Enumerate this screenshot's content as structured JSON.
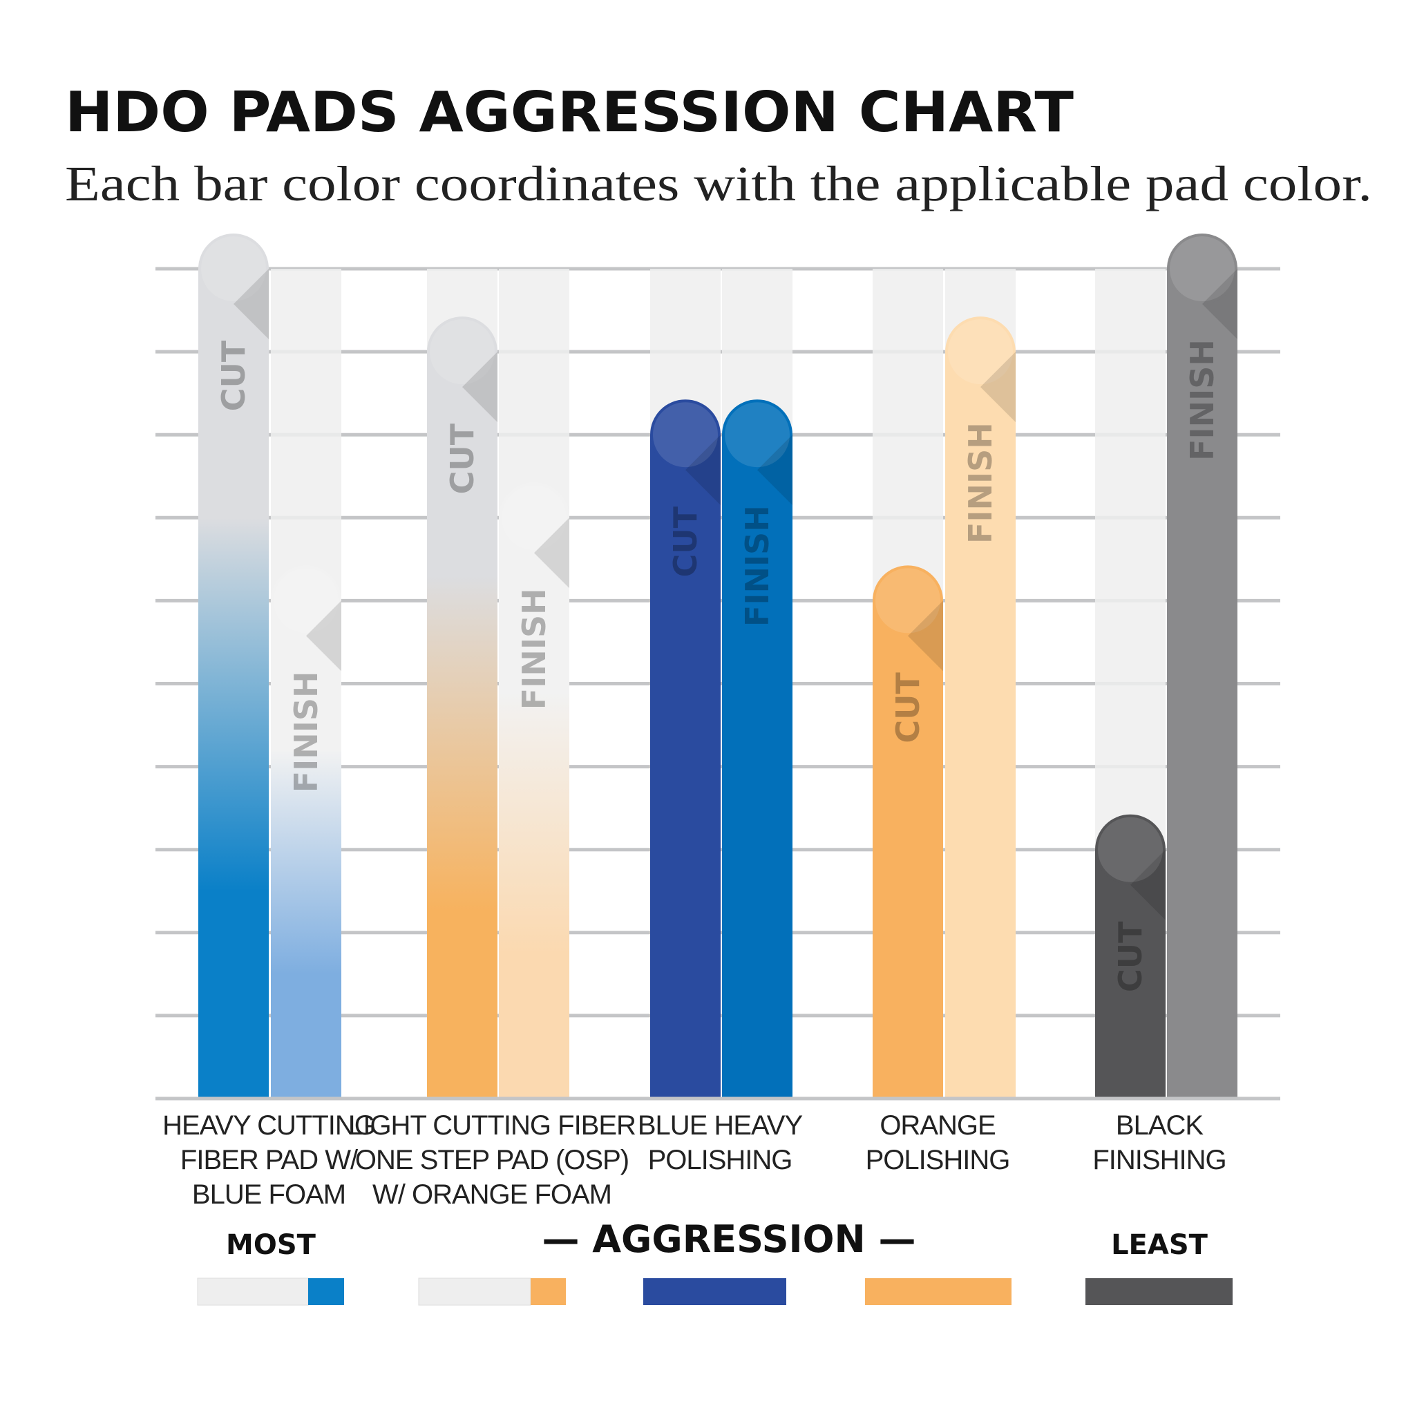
{
  "chart_data": {
    "type": "bar",
    "title": "HDO PADS AGGRESSION CHART",
    "subtitle": "Each bar color coordinates with the applicable pad color.",
    "categories": [
      "HEAVY CUTTING\nFIBER PAD W/\nBLUE FOAM",
      "LIGHT CUTTING FIBER\nONE STEP PAD (OSP)\nW/ ORANGE FOAM",
      "BLUE HEAVY\nPOLISHING",
      "ORANGE\nPOLISHING",
      "BLACK\nFINISHING"
    ],
    "series": [
      {
        "name": "CUT",
        "values": [
          10,
          9,
          8,
          6,
          3
        ],
        "colors": [
          [
            "#dcdde0",
            "#0a80c8"
          ],
          [
            "#dcdde0",
            "#f7b25e"
          ],
          "#2a4b9f",
          "#f8b15f",
          "#555557"
        ]
      },
      {
        "name": "FINISH",
        "values": [
          6,
          7,
          8,
          9,
          10
        ],
        "colors": [
          [
            "#f2f2f2",
            "#7eaee0"
          ],
          [
            "#f2f2f2",
            "#fbd9b0"
          ],
          "#0270ba",
          "#fddcb0",
          "#8a8a8c"
        ]
      }
    ],
    "ylim": [
      0,
      10
    ],
    "yticks": [
      0,
      1,
      2,
      3,
      4,
      5,
      6,
      7,
      8,
      9,
      10
    ],
    "grid": true,
    "legend": {
      "most": "MOST",
      "axis_label": "— AGGRESSION —",
      "least": "LEAST"
    }
  }
}
